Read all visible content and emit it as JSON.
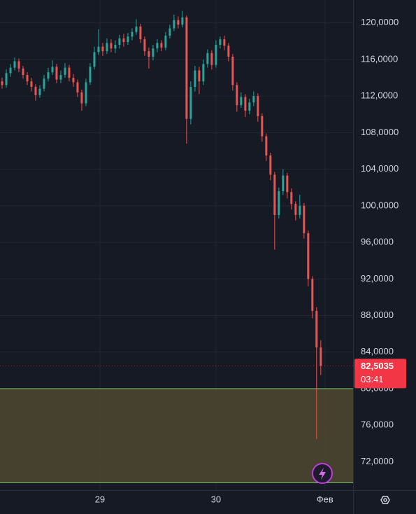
{
  "chart_data": {
    "type": "candlestick",
    "ylim": [
      68.9,
      122.5
    ],
    "yticks": [
      {
        "value": 72,
        "label": "72,0000"
      },
      {
        "value": 76,
        "label": "76,0000"
      },
      {
        "value": 80,
        "label": "80,0000"
      },
      {
        "value": 84,
        "label": "84,0000"
      },
      {
        "value": 88,
        "label": "88,0000"
      },
      {
        "value": 92,
        "label": "92,0000"
      },
      {
        "value": 96,
        "label": "96,0000"
      },
      {
        "value": 100,
        "label": "100,0000"
      },
      {
        "value": 104,
        "label": "104,0000"
      },
      {
        "value": 108,
        "label": "108,0000"
      },
      {
        "value": 112,
        "label": "112,0000"
      },
      {
        "value": 116,
        "label": "116,0000"
      },
      {
        "value": 120,
        "label": "120,0000"
      }
    ],
    "xlim": [
      -0.5,
      83.7
    ],
    "xticks": [
      {
        "value": 23.33,
        "label": "29"
      },
      {
        "value": 51,
        "label": "30"
      },
      {
        "value": 77,
        "label": "Фев"
      }
    ],
    "grid": true,
    "up_color": "#26a69a",
    "down_color": "#ef5350",
    "open": [
      113.6,
      113.2,
      114.5,
      115.1,
      115.8,
      115.0,
      114.3,
      113.6,
      113.0,
      112.1,
      112.8,
      113.9,
      114.6,
      115.2,
      113.8,
      114.3,
      115.1,
      114.0,
      113.5,
      112.4,
      111.2,
      113.5,
      115.2,
      116.8,
      117.4,
      116.9,
      117.8,
      117.2,
      117.6,
      118.3,
      117.9,
      118.5,
      119.0,
      119.6,
      118.2,
      116.9,
      116.3,
      117.2,
      117.8,
      117.3,
      118.6,
      119.4,
      120.3,
      119.8,
      120.6,
      109.5,
      113.0,
      114.8,
      113.6,
      115.5,
      116.7,
      115.4,
      117.6,
      118.2,
      117.5,
      116.3,
      113.2,
      111.0,
      111.9,
      110.4,
      111.3,
      112.0,
      109.8,
      107.6,
      105.5,
      103.4,
      99.0,
      101.6,
      103.3,
      101.5,
      100.2,
      99.0,
      100.0,
      97.0,
      92.0,
      88.5,
      84.5
    ],
    "high": [
      114.0,
      114.9,
      115.5,
      116.2,
      116.1,
      115.3,
      114.6,
      114.0,
      113.3,
      113.2,
      114.3,
      115.1,
      115.9,
      115.5,
      114.8,
      115.6,
      115.4,
      114.4,
      113.8,
      112.7,
      113.9,
      115.6,
      117.4,
      119.3,
      117.8,
      118.3,
      118.2,
      118.1,
      118.7,
      118.8,
      118.9,
      119.4,
      120.4,
      119.9,
      118.5,
      117.3,
      117.6,
      118.2,
      118.1,
      119.0,
      119.8,
      120.9,
      120.7,
      121.3,
      120.8,
      113.6,
      115.3,
      115.2,
      116.0,
      117.1,
      117.0,
      118.1,
      118.5,
      118.6,
      117.8,
      116.6,
      113.5,
      112.4,
      112.2,
      111.7,
      112.5,
      112.3,
      110.1,
      107.9,
      105.8,
      103.7,
      102.0,
      104.0,
      103.6,
      101.9,
      100.5,
      101.2,
      100.3,
      97.3,
      92.3,
      88.9,
      85.3
    ],
    "low": [
      112.8,
      112.9,
      114.1,
      114.8,
      114.6,
      113.9,
      113.2,
      112.5,
      111.5,
      111.8,
      112.5,
      113.6,
      114.3,
      113.4,
      113.4,
      114.0,
      113.6,
      113.0,
      111.9,
      110.4,
      110.9,
      113.2,
      114.9,
      116.5,
      116.4,
      116.6,
      116.8,
      116.7,
      117.2,
      117.4,
      117.6,
      118.1,
      118.7,
      117.8,
      116.4,
      115.0,
      115.9,
      116.8,
      116.9,
      117.0,
      118.3,
      119.1,
      119.4,
      119.5,
      106.8,
      108.9,
      112.5,
      112.2,
      113.2,
      115.1,
      114.9,
      115.1,
      117.2,
      117.0,
      115.8,
      112.6,
      110.3,
      110.7,
      109.7,
      110.0,
      110.9,
      109.2,
      107.0,
      104.9,
      102.8,
      95.2,
      98.6,
      101.2,
      100.8,
      99.6,
      98.4,
      98.6,
      96.4,
      91.2,
      87.7,
      74.5,
      81.5
    ],
    "close": [
      113.2,
      114.5,
      115.1,
      115.8,
      115.0,
      114.3,
      113.6,
      113.0,
      112.1,
      112.8,
      113.9,
      114.6,
      115.2,
      113.8,
      114.3,
      115.1,
      114.0,
      113.5,
      112.4,
      111.2,
      113.5,
      115.2,
      116.8,
      117.4,
      116.9,
      117.8,
      117.2,
      117.6,
      118.3,
      117.9,
      118.5,
      119.0,
      119.6,
      118.2,
      116.9,
      116.3,
      117.2,
      117.8,
      117.3,
      118.6,
      119.4,
      120.3,
      119.8,
      120.6,
      109.5,
      113.0,
      114.8,
      113.6,
      115.5,
      116.7,
      115.4,
      117.6,
      118.2,
      117.5,
      116.3,
      113.2,
      111.0,
      111.9,
      110.4,
      111.3,
      112.0,
      109.8,
      107.6,
      105.5,
      103.4,
      99.0,
      101.6,
      103.3,
      101.5,
      100.2,
      99.0,
      100.0,
      97.0,
      92.0,
      88.5,
      84.5,
      82.5035
    ],
    "zone": {
      "from": 69.7,
      "to": 80,
      "color": "#4a4630",
      "edge_color": "#7bc96f"
    },
    "last_price": {
      "value": 82.5035,
      "label": "82,5035",
      "color": "#f23645"
    },
    "countdown": "03:41"
  }
}
